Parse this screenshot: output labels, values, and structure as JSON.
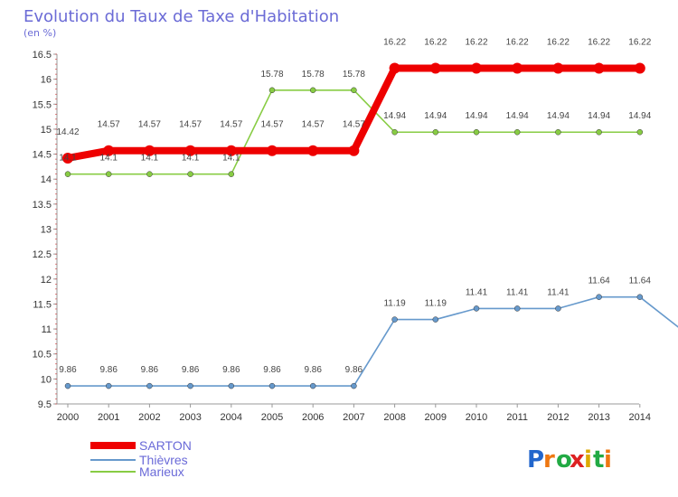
{
  "chart_data": {
    "type": "line",
    "title": "Evolution du Taux de Taxe d'Habitation",
    "subtitle": "(en %)",
    "x": [
      "2000",
      "2001",
      "2002",
      "2003",
      "2004",
      "2005",
      "2006",
      "2007",
      "2008",
      "2009",
      "2010",
      "2011",
      "2012",
      "2013",
      "2014"
    ],
    "ylim": [
      9.5,
      16.5
    ],
    "yticks": [
      9.5,
      10,
      10.5,
      11,
      11.5,
      12,
      12.5,
      13,
      13.5,
      14,
      14.5,
      15,
      15.5,
      16,
      16.5
    ],
    "ytick_labels": [
      "9.5",
      "10",
      "10.5",
      "11",
      "11.5",
      "12",
      "12.5",
      "13",
      "13.5",
      "14",
      "14.5",
      "15",
      "15.5",
      "16",
      "16.5"
    ],
    "series": [
      {
        "name": "Marieux",
        "color": "#88cc44",
        "values": [
          14.1,
          14.1,
          14.1,
          14.1,
          14.1,
          15.78,
          15.78,
          15.78,
          14.94,
          14.94,
          14.94,
          14.94,
          14.94,
          14.94,
          14.94
        ],
        "labels": [
          "14.1",
          "14.1",
          "14.1",
          "14.1",
          "14.1",
          "15.78",
          "15.78",
          "15.78",
          "14.94",
          "14.94",
          "14.94",
          "14.94",
          "14.94",
          "14.94",
          "14.94"
        ]
      },
      {
        "name": "Thièvres",
        "color": "#6699cc",
        "values": [
          9.86,
          9.86,
          9.86,
          9.86,
          9.86,
          9.86,
          9.86,
          9.86,
          11.19,
          11.19,
          11.41,
          11.41,
          11.41,
          11.64,
          11.64
        ],
        "labels": [
          "9.86",
          "9.86",
          "9.86",
          "9.86",
          "9.86",
          "9.86",
          "9.86",
          "9.86",
          "11.19",
          "11.19",
          "11.41",
          "11.41",
          "11.41",
          "11.64",
          "11.64"
        ]
      },
      {
        "name": "SARTON",
        "color": "#ee0000",
        "values": [
          14.42,
          14.57,
          14.57,
          14.57,
          14.57,
          14.57,
          14.57,
          14.57,
          16.22,
          16.22,
          16.22,
          16.22,
          16.22,
          16.22,
          16.22
        ],
        "labels": [
          "14.42",
          "14.57",
          "14.57",
          "14.57",
          "14.57",
          "14.57",
          "14.57",
          "14.57",
          "16.22",
          "16.22",
          "16.22",
          "16.22",
          "16.22",
          "16.22",
          "16.22"
        ]
      }
    ],
    "legend": [
      "SARTON",
      "Thièvres",
      "Marieux"
    ],
    "legend_position": "bottom-left"
  },
  "logo": {
    "text": "Proxiti"
  }
}
